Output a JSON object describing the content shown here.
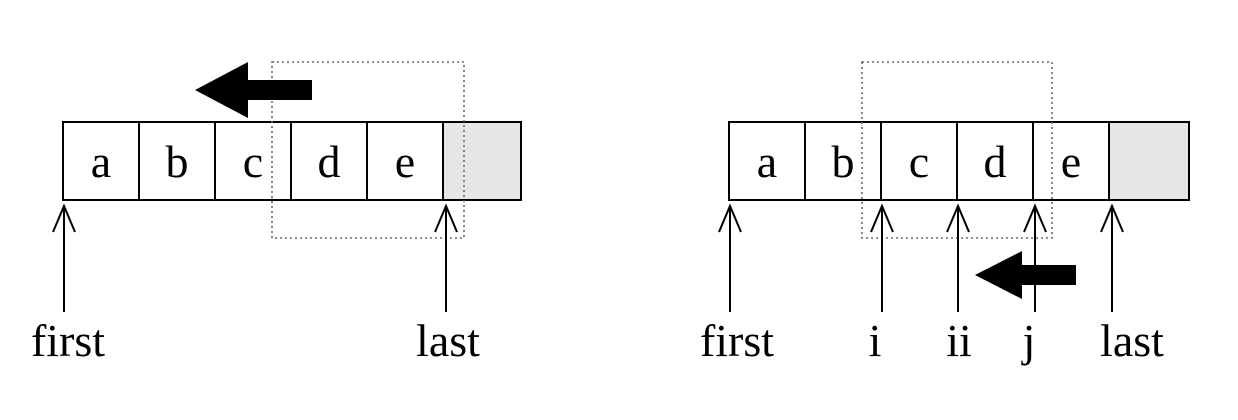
{
  "left_diagram": {
    "cells": [
      "a",
      "b",
      "c",
      "d",
      "e",
      ""
    ],
    "pointers": [
      "first",
      "last"
    ]
  },
  "right_diagram": {
    "cells": [
      "a",
      "b",
      "c",
      "d",
      "e",
      ""
    ],
    "pointers": [
      "first",
      "i",
      "ii",
      "j",
      "last"
    ]
  },
  "colors": {
    "empty_cell": "#e6e6e6",
    "window_border": "#6a6a6a",
    "arrow": "#000000"
  }
}
